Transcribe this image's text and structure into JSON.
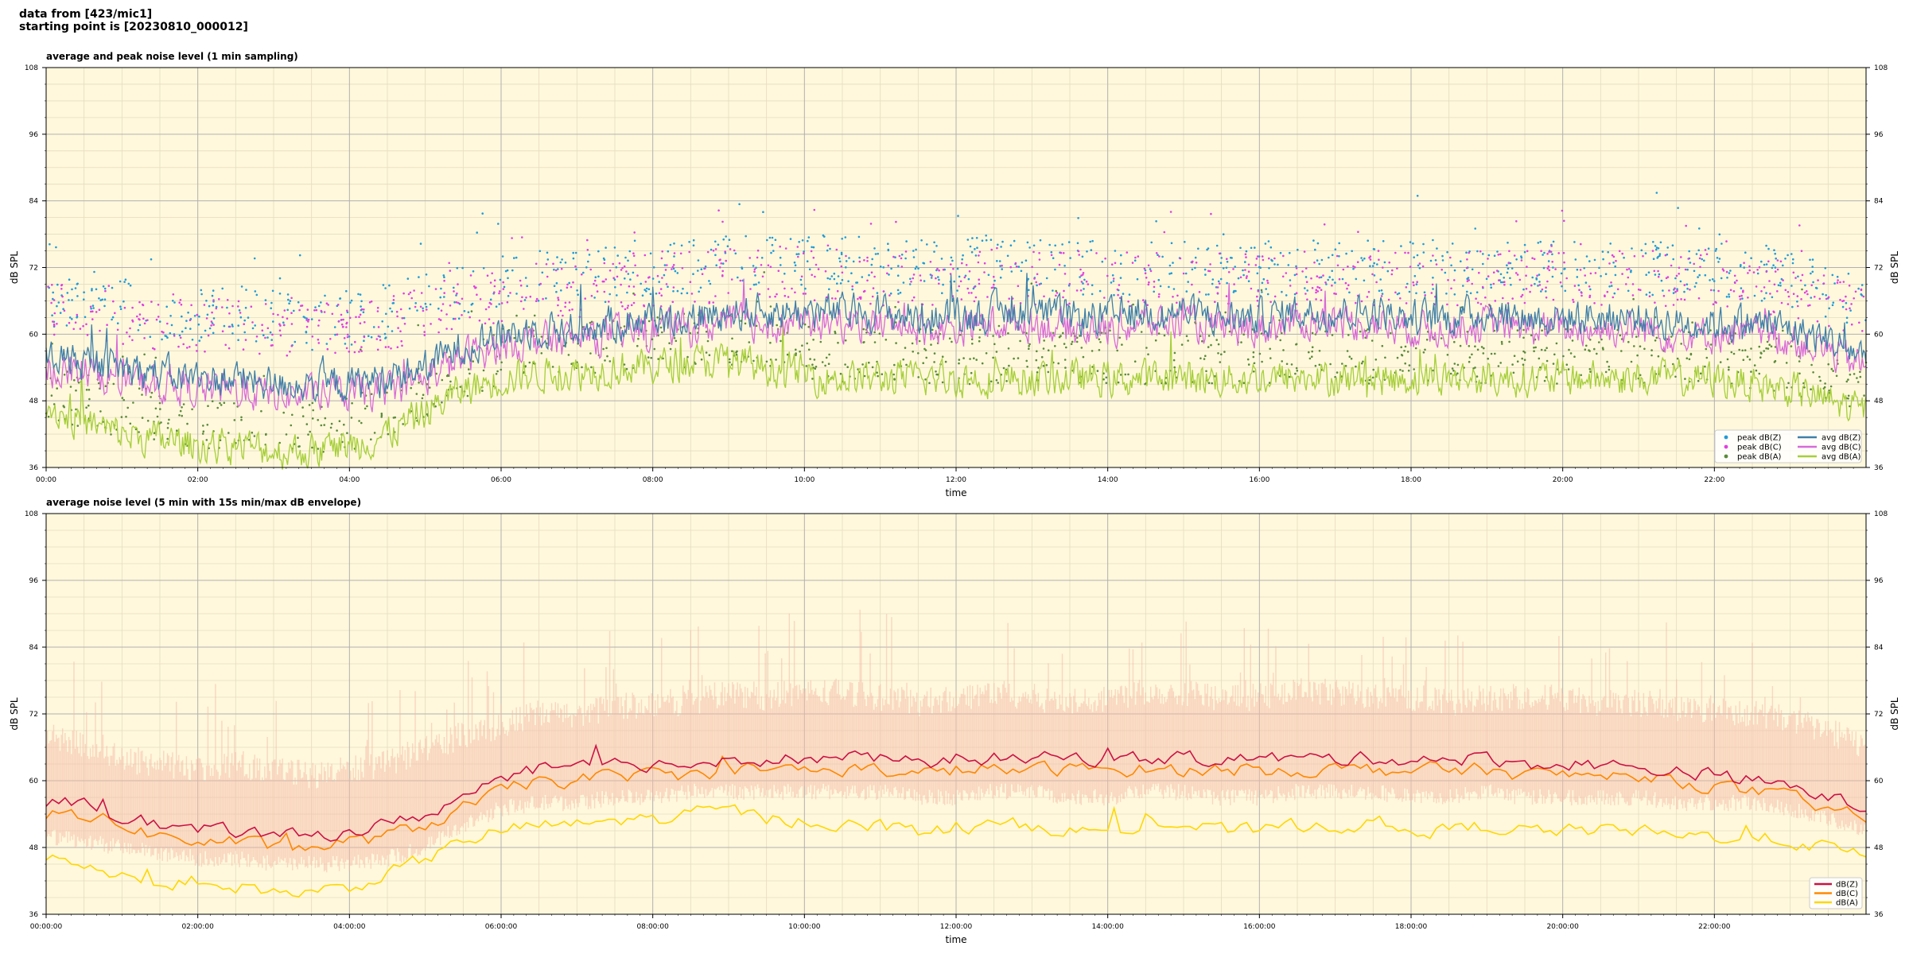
{
  "header": {
    "line1": "data from [423/mic1]",
    "line2": "starting point is [20230810_000012]"
  },
  "colors": {
    "plot_bg": "#fff8dc",
    "peak_z": "#1f9bd8",
    "peak_c": "#e040e0",
    "peak_a": "#5a8a3a",
    "avg_z": "#3f7fa8",
    "avg_c": "#d86ad8",
    "avg_a": "#a6cf3a",
    "db_z": "#cc1144",
    "db_c": "#ff8800",
    "db_a": "#ffd700",
    "envelope": "#f4b9a8"
  },
  "chart_data": [
    {
      "type": "line",
      "title": "average and peak noise level (1 min sampling)",
      "xlabel": "time",
      "ylabel": "dB SPL",
      "xlim_hours": [
        0,
        24
      ],
      "ylim": [
        36,
        108
      ],
      "yticks": [
        36,
        48,
        60,
        72,
        84,
        96,
        108
      ],
      "xticks": [
        "00:00",
        "02:00",
        "04:00",
        "06:00",
        "08:00",
        "10:00",
        "12:00",
        "14:00",
        "16:00",
        "18:00",
        "20:00",
        "22:00"
      ],
      "grid": true,
      "legend_position": "bottom-right",
      "x_hours": [
        0,
        0.5,
        1,
        1.5,
        2,
        2.5,
        3,
        3.5,
        4,
        4.5,
        5,
        5.5,
        6,
        6.5,
        7,
        7.5,
        8,
        8.5,
        9,
        9.5,
        10,
        10.5,
        11,
        11.5,
        12,
        12.5,
        13,
        13.5,
        14,
        14.5,
        15,
        15.5,
        16,
        16.5,
        17,
        17.5,
        18,
        18.5,
        19,
        19.5,
        20,
        20.5,
        21,
        21.5,
        22,
        22.5,
        23,
        23.5,
        24
      ],
      "series": [
        {
          "name": "peak dB(Z)",
          "kind": "scatter",
          "color_key": "peak_z",
          "values": [
            66,
            67,
            65,
            64,
            63,
            64,
            63,
            62,
            63,
            64,
            66,
            68,
            69,
            70,
            70,
            71,
            72,
            72,
            73,
            73,
            73,
            73,
            72,
            72,
            72,
            73,
            72,
            72,
            72,
            72,
            72,
            72,
            72,
            72,
            72,
            72,
            72,
            72,
            72,
            72,
            72,
            72,
            72,
            72,
            72,
            71,
            70,
            68,
            66
          ]
        },
        {
          "name": "peak dB(C)",
          "kind": "scatter",
          "color_key": "peak_c",
          "values": [
            64,
            65,
            63,
            62,
            61,
            62,
            61,
            60,
            61,
            62,
            64,
            66,
            67,
            68,
            68,
            69,
            70,
            70,
            71,
            71,
            71,
            71,
            70,
            70,
            70,
            71,
            70,
            70,
            70,
            70,
            70,
            70,
            70,
            70,
            70,
            70,
            70,
            70,
            70,
            70,
            70,
            70,
            70,
            70,
            70,
            69,
            68,
            66,
            64
          ]
        },
        {
          "name": "peak dB(A)",
          "kind": "scatter",
          "color_key": "peak_a",
          "values": [
            50,
            48,
            46,
            45,
            44,
            44,
            43,
            43,
            44,
            46,
            50,
            53,
            56,
            57,
            57,
            58,
            58,
            59,
            59,
            58,
            57,
            56,
            56,
            56,
            56,
            56,
            56,
            56,
            56,
            56,
            56,
            56,
            56,
            56,
            56,
            56,
            56,
            56,
            56,
            56,
            56,
            56,
            56,
            56,
            56,
            55,
            54,
            53,
            51
          ]
        },
        {
          "name": "avg dB(Z)",
          "kind": "line",
          "color_key": "avg_z",
          "values": [
            56,
            55,
            54,
            53,
            52,
            52,
            51,
            51,
            51,
            52,
            54,
            58,
            60,
            61,
            61,
            62,
            63,
            63,
            64,
            64,
            64,
            64,
            64,
            63,
            63,
            64,
            64,
            63,
            63,
            64,
            64,
            63,
            63,
            64,
            64,
            64,
            63,
            63,
            64,
            63,
            63,
            63,
            63,
            62,
            62,
            62,
            61,
            59,
            56
          ]
        },
        {
          "name": "avg dB(C)",
          "kind": "line",
          "color_key": "avg_c",
          "values": [
            54,
            53,
            52,
            51,
            50,
            50,
            49,
            49,
            49,
            50,
            52,
            56,
            58,
            59,
            59,
            60,
            61,
            61,
            62,
            62,
            62,
            62,
            62,
            61,
            61,
            62,
            62,
            61,
            61,
            62,
            62,
            61,
            61,
            62,
            62,
            62,
            61,
            61,
            62,
            61,
            61,
            61,
            61,
            60,
            60,
            60,
            59,
            57,
            54
          ]
        },
        {
          "name": "avg dB(A)",
          "kind": "line",
          "color_key": "avg_a",
          "values": [
            47,
            44,
            42,
            41,
            40,
            40,
            39,
            39,
            40,
            42,
            46,
            50,
            52,
            53,
            53,
            54,
            54,
            55,
            55,
            54,
            53,
            52,
            52,
            52,
            52,
            52,
            52,
            52,
            52,
            52,
            52,
            52,
            52,
            52,
            52,
            52,
            52,
            52,
            52,
            52,
            52,
            52,
            52,
            52,
            52,
            51,
            50,
            48,
            46
          ]
        }
      ]
    },
    {
      "type": "line",
      "title": "average noise level (5 min with 15s min/max dB envelope)",
      "xlabel": "time",
      "ylabel": "dB SPL",
      "xlim_hours": [
        0,
        24
      ],
      "ylim": [
        36,
        108
      ],
      "yticks": [
        36,
        48,
        60,
        72,
        84,
        96,
        108
      ],
      "xticks": [
        "00:00:00",
        "02:00:00",
        "04:00:00",
        "06:00:00",
        "08:00:00",
        "10:00:00",
        "12:00:00",
        "14:00:00",
        "16:00:00",
        "18:00:00",
        "20:00:00",
        "22:00:00"
      ],
      "grid": true,
      "legend_position": "bottom-right",
      "x_hours": [
        0,
        0.5,
        1,
        1.5,
        2,
        2.5,
        3,
        3.5,
        4,
        4.5,
        5,
        5.5,
        6,
        6.5,
        7,
        7.5,
        8,
        8.5,
        9,
        9.5,
        10,
        10.5,
        11,
        11.5,
        12,
        12.5,
        13,
        13.5,
        14,
        14.5,
        15,
        15.5,
        16,
        16.5,
        17,
        17.5,
        18,
        18.5,
        19,
        19.5,
        20,
        20.5,
        21,
        21.5,
        22,
        22.5,
        23,
        23.5,
        24
      ],
      "envelope": {
        "color_key": "envelope",
        "max": [
          68,
          66,
          64,
          63,
          62,
          63,
          62,
          61,
          62,
          63,
          66,
          68,
          70,
          72,
          72,
          73,
          74,
          74,
          76,
          75,
          76,
          76,
          75,
          74,
          75,
          76,
          75,
          74,
          75,
          76,
          76,
          75,
          75,
          76,
          76,
          75,
          75,
          74,
          75,
          75,
          75,
          74,
          74,
          73,
          73,
          72,
          71,
          69,
          66
        ],
        "min": [
          50,
          49,
          48,
          47,
          46,
          46,
          45,
          45,
          45,
          46,
          48,
          52,
          55,
          56,
          56,
          57,
          57,
          58,
          58,
          58,
          58,
          58,
          58,
          57,
          57,
          58,
          58,
          57,
          57,
          58,
          58,
          57,
          57,
          58,
          58,
          58,
          57,
          57,
          58,
          57,
          57,
          57,
          57,
          56,
          56,
          56,
          55,
          53,
          51
        ]
      },
      "series": [
        {
          "name": "dB(Z)",
          "color_key": "db_z",
          "values": [
            56,
            56,
            54,
            52,
            51,
            51,
            50,
            50,
            51,
            52,
            54,
            57,
            60,
            62,
            62,
            63,
            63,
            63,
            64,
            64,
            64,
            64,
            64,
            63,
            64,
            64,
            64,
            64,
            64,
            64,
            64,
            64,
            64,
            64,
            64,
            64,
            64,
            64,
            64,
            63,
            63,
            63,
            62,
            62,
            61,
            60,
            59,
            57,
            55
          ]
        },
        {
          "name": "dB(C)",
          "color_key": "db_c",
          "values": [
            54,
            54,
            52,
            50,
            49,
            49,
            48,
            48,
            49,
            50,
            52,
            55,
            58,
            60,
            60,
            61,
            61,
            61,
            62,
            62,
            62,
            62,
            62,
            61,
            62,
            62,
            62,
            62,
            62,
            62,
            62,
            62,
            62,
            62,
            62,
            62,
            62,
            62,
            62,
            61,
            61,
            61,
            60,
            60,
            59,
            58,
            57,
            55,
            53
          ]
        },
        {
          "name": "dB(A)",
          "color_key": "db_a",
          "values": [
            46,
            45,
            43,
            42,
            41,
            41,
            40,
            40,
            41,
            43,
            46,
            49,
            51,
            52,
            52,
            53,
            53,
            54,
            55,
            53,
            53,
            52,
            52,
            51,
            51,
            52,
            52,
            51,
            51,
            52,
            52,
            51,
            51,
            52,
            52,
            52,
            51,
            51,
            52,
            51,
            51,
            51,
            51,
            50,
            50,
            50,
            49,
            48,
            46
          ]
        }
      ]
    }
  ]
}
